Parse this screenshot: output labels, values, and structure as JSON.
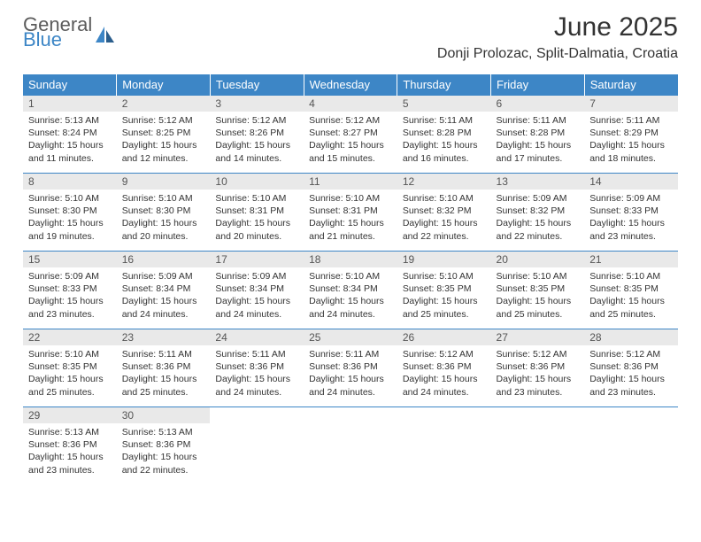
{
  "brand": {
    "word1": "General",
    "word2": "Blue",
    "color1": "#5b5b5b",
    "color2": "#3d86c6"
  },
  "title": "June 2025",
  "location": "Donji Prolozac, Split-Dalmatia, Croatia",
  "colors": {
    "header_bg": "#3d86c6",
    "header_text": "#ffffff",
    "daynum_bg": "#e9e9e9",
    "row_border": "#3d86c6",
    "body_text": "#333333"
  },
  "typography": {
    "title_fontsize": 30,
    "location_fontsize": 16,
    "header_fontsize": 13,
    "daynum_fontsize": 12,
    "body_fontsize": 10.5
  },
  "weekdays": [
    "Sunday",
    "Monday",
    "Tuesday",
    "Wednesday",
    "Thursday",
    "Friday",
    "Saturday"
  ],
  "days": [
    {
      "n": 1,
      "sunrise": "5:13 AM",
      "sunset": "8:24 PM",
      "dl": "15 hours and 11 minutes."
    },
    {
      "n": 2,
      "sunrise": "5:12 AM",
      "sunset": "8:25 PM",
      "dl": "15 hours and 12 minutes."
    },
    {
      "n": 3,
      "sunrise": "5:12 AM",
      "sunset": "8:26 PM",
      "dl": "15 hours and 14 minutes."
    },
    {
      "n": 4,
      "sunrise": "5:12 AM",
      "sunset": "8:27 PM",
      "dl": "15 hours and 15 minutes."
    },
    {
      "n": 5,
      "sunrise": "5:11 AM",
      "sunset": "8:28 PM",
      "dl": "15 hours and 16 minutes."
    },
    {
      "n": 6,
      "sunrise": "5:11 AM",
      "sunset": "8:28 PM",
      "dl": "15 hours and 17 minutes."
    },
    {
      "n": 7,
      "sunrise": "5:11 AM",
      "sunset": "8:29 PM",
      "dl": "15 hours and 18 minutes."
    },
    {
      "n": 8,
      "sunrise": "5:10 AM",
      "sunset": "8:30 PM",
      "dl": "15 hours and 19 minutes."
    },
    {
      "n": 9,
      "sunrise": "5:10 AM",
      "sunset": "8:30 PM",
      "dl": "15 hours and 20 minutes."
    },
    {
      "n": 10,
      "sunrise": "5:10 AM",
      "sunset": "8:31 PM",
      "dl": "15 hours and 20 minutes."
    },
    {
      "n": 11,
      "sunrise": "5:10 AM",
      "sunset": "8:31 PM",
      "dl": "15 hours and 21 minutes."
    },
    {
      "n": 12,
      "sunrise": "5:10 AM",
      "sunset": "8:32 PM",
      "dl": "15 hours and 22 minutes."
    },
    {
      "n": 13,
      "sunrise": "5:09 AM",
      "sunset": "8:32 PM",
      "dl": "15 hours and 22 minutes."
    },
    {
      "n": 14,
      "sunrise": "5:09 AM",
      "sunset": "8:33 PM",
      "dl": "15 hours and 23 minutes."
    },
    {
      "n": 15,
      "sunrise": "5:09 AM",
      "sunset": "8:33 PM",
      "dl": "15 hours and 23 minutes."
    },
    {
      "n": 16,
      "sunrise": "5:09 AM",
      "sunset": "8:34 PM",
      "dl": "15 hours and 24 minutes."
    },
    {
      "n": 17,
      "sunrise": "5:09 AM",
      "sunset": "8:34 PM",
      "dl": "15 hours and 24 minutes."
    },
    {
      "n": 18,
      "sunrise": "5:10 AM",
      "sunset": "8:34 PM",
      "dl": "15 hours and 24 minutes."
    },
    {
      "n": 19,
      "sunrise": "5:10 AM",
      "sunset": "8:35 PM",
      "dl": "15 hours and 25 minutes."
    },
    {
      "n": 20,
      "sunrise": "5:10 AM",
      "sunset": "8:35 PM",
      "dl": "15 hours and 25 minutes."
    },
    {
      "n": 21,
      "sunrise": "5:10 AM",
      "sunset": "8:35 PM",
      "dl": "15 hours and 25 minutes."
    },
    {
      "n": 22,
      "sunrise": "5:10 AM",
      "sunset": "8:35 PM",
      "dl": "15 hours and 25 minutes."
    },
    {
      "n": 23,
      "sunrise": "5:11 AM",
      "sunset": "8:36 PM",
      "dl": "15 hours and 25 minutes."
    },
    {
      "n": 24,
      "sunrise": "5:11 AM",
      "sunset": "8:36 PM",
      "dl": "15 hours and 24 minutes."
    },
    {
      "n": 25,
      "sunrise": "5:11 AM",
      "sunset": "8:36 PM",
      "dl": "15 hours and 24 minutes."
    },
    {
      "n": 26,
      "sunrise": "5:12 AM",
      "sunset": "8:36 PM",
      "dl": "15 hours and 24 minutes."
    },
    {
      "n": 27,
      "sunrise": "5:12 AM",
      "sunset": "8:36 PM",
      "dl": "15 hours and 23 minutes."
    },
    {
      "n": 28,
      "sunrise": "5:12 AM",
      "sunset": "8:36 PM",
      "dl": "15 hours and 23 minutes."
    },
    {
      "n": 29,
      "sunrise": "5:13 AM",
      "sunset": "8:36 PM",
      "dl": "15 hours and 23 minutes."
    },
    {
      "n": 30,
      "sunrise": "5:13 AM",
      "sunset": "8:36 PM",
      "dl": "15 hours and 22 minutes."
    }
  ],
  "labels": {
    "sunrise": "Sunrise:",
    "sunset": "Sunset:",
    "daylight": "Daylight:"
  },
  "layout": {
    "columns": 7,
    "start_weekday_index": 0,
    "total_days": 30
  }
}
